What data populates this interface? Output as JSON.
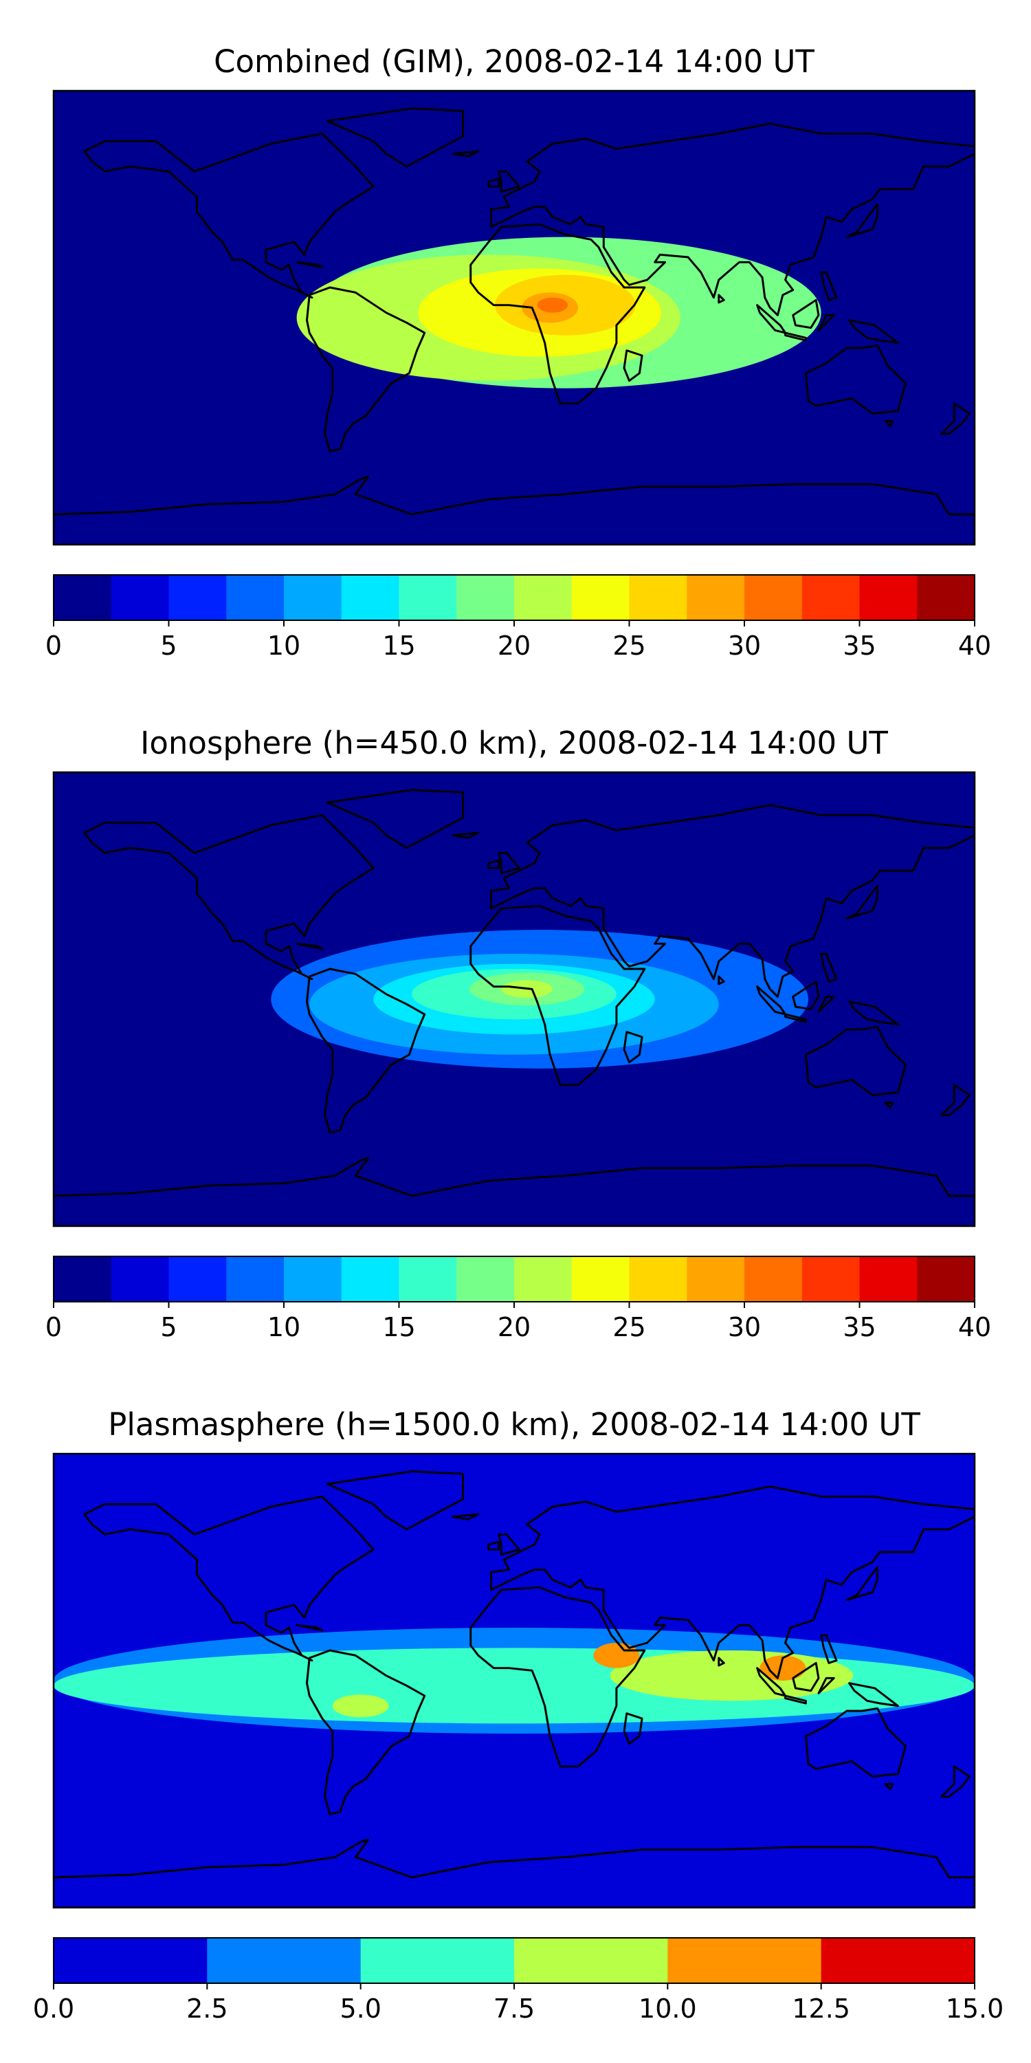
{
  "chart_data": [
    {
      "type": "heatmap",
      "title": "Combined (GIM), 2008-02-14 14:00 UT",
      "colorbar": {
        "levels": [
          0,
          2.5,
          5,
          7.5,
          10,
          12.5,
          15,
          17.5,
          20,
          22.5,
          25,
          27.5,
          30,
          32.5,
          35,
          37.5,
          40
        ],
        "colors": [
          "#00008f",
          "#0000d9",
          "#0022ff",
          "#0064ff",
          "#00a8ff",
          "#00e8ff",
          "#36ffc9",
          "#76ff89",
          "#b8ff47",
          "#f5ff0a",
          "#ffd600",
          "#ffa400",
          "#ff6f00",
          "#ff3400",
          "#e80000",
          "#a00000"
        ],
        "ticks": [
          "0",
          "5",
          "10",
          "15",
          "20",
          "25",
          "30",
          "35",
          "40"
        ],
        "range": [
          0,
          40
        ]
      },
      "blobs": [
        {
          "lon": 20,
          "lat": 2,
          "rx": 200,
          "ry": 60,
          "level": 7
        },
        {
          "lon": -10,
          "lat": 0,
          "rx": 150,
          "ry": 50,
          "level": 8
        },
        {
          "lon": 10,
          "lat": 2,
          "rx": 95,
          "ry": 35,
          "level": 9
        },
        {
          "lon": 20,
          "lat": 5,
          "rx": 55,
          "ry": 24,
          "level": 10
        },
        {
          "lon": 14,
          "lat": 4,
          "rx": 22,
          "ry": 12,
          "level": 11
        },
        {
          "lon": 15,
          "lat": 5,
          "rx": 12,
          "ry": 6,
          "level": 12
        }
      ]
    },
    {
      "type": "heatmap",
      "title": "Ionosphere  (h=450.0 km), 2008-02-14 14:00 UT",
      "colorbar": {
        "levels": [
          0,
          2.5,
          5,
          7.5,
          10,
          12.5,
          15,
          17.5,
          20,
          22.5,
          25,
          27.5,
          30,
          32.5,
          35,
          37.5,
          40
        ],
        "colors": [
          "#00008f",
          "#0000d9",
          "#0022ff",
          "#0064ff",
          "#00a8ff",
          "#00e8ff",
          "#36ffc9",
          "#76ff89",
          "#b8ff47",
          "#f5ff0a",
          "#ffd600",
          "#ffa400",
          "#ff6f00",
          "#ff3400",
          "#e80000",
          "#a00000"
        ],
        "ticks": [
          "0",
          "5",
          "10",
          "15",
          "20",
          "25",
          "30",
          "35",
          "40"
        ],
        "range": [
          0,
          40
        ]
      },
      "blobs": [
        {
          "lon": 10,
          "lat": 0,
          "rx": 210,
          "ry": 55,
          "level": 3
        },
        {
          "lon": 0,
          "lat": -2,
          "rx": 160,
          "ry": 40,
          "level": 4
        },
        {
          "lon": 0,
          "lat": 0,
          "rx": 110,
          "ry": 28,
          "level": 5
        },
        {
          "lon": 0,
          "lat": 2,
          "rx": 80,
          "ry": 20,
          "level": 6
        },
        {
          "lon": 5,
          "lat": 4,
          "rx": 45,
          "ry": 13,
          "level": 7
        },
        {
          "lon": 5,
          "lat": 4,
          "rx": 20,
          "ry": 7,
          "level": 8
        }
      ]
    },
    {
      "type": "heatmap",
      "title": "Plasmasphere (h=1500.0 km), 2008-02-14 14:00 UT",
      "colorbar": {
        "levels": [
          0.0,
          2.5,
          5.0,
          7.5,
          10.0,
          12.5,
          15.0
        ],
        "colors": [
          "#0000d9",
          "#0080ff",
          "#36ffc9",
          "#b8ff47",
          "#ff9300",
          "#e00000"
        ],
        "ticks": [
          "0.0",
          "2.5",
          "5.0",
          "7.5",
          "10.0",
          "12.5",
          "15.0"
        ],
        "range": [
          0,
          15
        ]
      },
      "blobs": [
        {
          "lon": 0,
          "lat": 0,
          "rx": 360,
          "ry": 42,
          "level": 1
        },
        {
          "lon": 0,
          "lat": -2,
          "rx": 360,
          "ry": 30,
          "level": 2
        },
        {
          "lon": 85,
          "lat": 2,
          "rx": 95,
          "ry": 20,
          "level": 3
        },
        {
          "lon": -60,
          "lat": -10,
          "rx": 22,
          "ry": 9,
          "level": 3
        },
        {
          "lon": 40,
          "lat": 10,
          "rx": 18,
          "ry": 10,
          "level": 4
        },
        {
          "lon": 105,
          "lat": 5,
          "rx": 18,
          "ry": 10,
          "level": 4
        }
      ]
    }
  ]
}
